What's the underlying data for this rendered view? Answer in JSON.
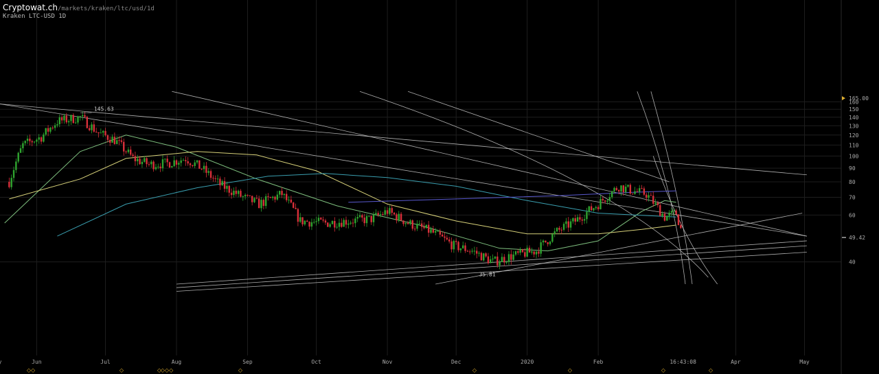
{
  "header": {
    "site": "Cryptowat.ch",
    "path": "/markets/kraken/ltc/usd/1d",
    "subtitle": "Kraken LTC-USD 1D"
  },
  "colors": {
    "bg": "#000000",
    "grid": "#1e1e1e",
    "up": "#2fa52f",
    "down": "#d9303a",
    "ma_green": "#7fc07f",
    "ma_yellow": "#d8d27a",
    "ma_teal": "#3a9fb0",
    "ma_blue": "#5a5ad0",
    "trend": "#cfcfcf"
  },
  "chart_data": {
    "type": "candlestick",
    "x_ticks": [
      "Jun",
      "Jul",
      "Aug",
      "Sep",
      "Oct",
      "Nov",
      "Dec",
      "2020",
      "Feb",
      "16:43:08",
      "Apr",
      "May"
    ],
    "y_ticks": [
      "165.00",
      "160",
      "150",
      "140",
      "130",
      "120",
      "110",
      "100",
      "90",
      "80",
      "70",
      "60",
      "49.42",
      "40"
    ],
    "y_scale": "log",
    "current_price": "49.42",
    "top_price": "165.00",
    "countdown": "16:43:08",
    "annotations": {
      "high": "145.63",
      "low": "35.81"
    },
    "candles_anchor_close": [
      [
        "2019-05-20",
        80
      ],
      [
        "2019-05-26",
        110
      ],
      [
        "2019-06-03",
        118
      ],
      [
        "2019-06-10",
        135
      ],
      [
        "2019-06-20",
        140
      ],
      [
        "2019-06-28",
        122
      ],
      [
        "2019-07-05",
        115
      ],
      [
        "2019-07-13",
        98
      ],
      [
        "2019-07-20",
        93
      ],
      [
        "2019-07-28",
        94
      ],
      [
        "2019-08-05",
        98
      ],
      [
        "2019-08-12",
        90
      ],
      [
        "2019-08-20",
        78
      ],
      [
        "2019-08-30",
        70
      ],
      [
        "2019-09-06",
        66
      ],
      [
        "2019-09-16",
        72
      ],
      [
        "2019-09-24",
        57
      ],
      [
        "2019-10-05",
        56
      ],
      [
        "2019-10-15",
        57
      ],
      [
        "2019-10-25",
        58
      ],
      [
        "2019-11-01",
        62
      ],
      [
        "2019-11-10",
        56
      ],
      [
        "2019-11-20",
        52
      ],
      [
        "2019-11-30",
        46
      ],
      [
        "2019-12-08",
        44
      ],
      [
        "2019-12-17",
        40
      ],
      [
        "2019-12-25",
        42
      ],
      [
        "2020-01-05",
        44
      ],
      [
        "2020-01-14",
        52
      ],
      [
        "2020-01-22",
        57
      ],
      [
        "2020-02-01",
        66
      ],
      [
        "2020-02-10",
        77
      ],
      [
        "2020-02-16",
        74
      ],
      [
        "2020-02-22",
        72
      ],
      [
        "2020-03-01",
        59
      ],
      [
        "2020-03-06",
        61
      ],
      [
        "2020-03-09",
        49.4
      ]
    ],
    "moving_averages": [
      {
        "color": "ma_green",
        "points": [
          [
            "2019-05-18",
            56
          ],
          [
            "2019-06-20",
            104
          ],
          [
            "2019-07-10",
            120
          ],
          [
            "2019-08-01",
            108
          ],
          [
            "2019-09-05",
            82
          ],
          [
            "2019-10-10",
            65
          ],
          [
            "2019-11-15",
            55
          ],
          [
            "2019-12-20",
            45
          ],
          [
            "2020-01-10",
            44
          ],
          [
            "2020-02-01",
            48
          ],
          [
            "2020-02-20",
            62
          ],
          [
            "2020-03-01",
            68
          ],
          [
            "2020-03-06",
            67
          ]
        ]
      },
      {
        "color": "ma_yellow",
        "points": [
          [
            "2019-05-20",
            69
          ],
          [
            "2019-06-20",
            82
          ],
          [
            "2019-07-10",
            98
          ],
          [
            "2019-08-10",
            104
          ],
          [
            "2019-09-05",
            101
          ],
          [
            "2019-10-01",
            88
          ],
          [
            "2019-11-01",
            66
          ],
          [
            "2019-12-01",
            57
          ],
          [
            "2020-01-01",
            51
          ],
          [
            "2020-02-01",
            51
          ],
          [
            "2020-02-20",
            53
          ],
          [
            "2020-03-06",
            55
          ]
        ]
      },
      {
        "color": "ma_teal",
        "points": [
          [
            "2019-06-10",
            50
          ],
          [
            "2019-07-10",
            66
          ],
          [
            "2019-08-10",
            76
          ],
          [
            "2019-09-10",
            84
          ],
          [
            "2019-10-05",
            86
          ],
          [
            "2019-11-01",
            83
          ],
          [
            "2019-12-01",
            77
          ],
          [
            "2020-01-01",
            68
          ],
          [
            "2020-02-01",
            61
          ],
          [
            "2020-03-06",
            59
          ]
        ]
      },
      {
        "color": "ma_blue",
        "points": [
          [
            "2019-10-15",
            67
          ],
          [
            "2019-12-01",
            69
          ],
          [
            "2020-01-15",
            71
          ],
          [
            "2020-02-15",
            73
          ],
          [
            "2020-03-06",
            74
          ]
        ]
      }
    ],
    "trend_lines": [
      [
        [
          "2019-05-16",
          157
        ],
        [
          "2020-05-02",
          85
        ]
      ],
      [
        [
          "2019-07-30",
          175
        ],
        [
          "2020-05-02",
          50
        ]
      ],
      [
        [
          "2019-11-10",
          175
        ],
        [
          "2020-03-03",
          80
        ]
      ],
      [
        [
          "2019-05-16",
          157
        ],
        [
          "2020-05-02",
          50
        ]
      ],
      [
        [
          "2019-11-22",
          33
        ],
        [
          "2020-04-30",
          61
        ]
      ],
      [
        [
          "2019-08-01",
          33
        ],
        [
          "2020-05-02",
          48
        ]
      ],
      [
        [
          "2019-08-01",
          32
        ],
        [
          "2020-05-02",
          46
        ]
      ],
      [
        [
          "2019-08-01",
          31
        ],
        [
          "2020-05-02",
          43.5
        ]
      ]
    ]
  },
  "markers": {
    "shapes": [
      "◇",
      "◇◇",
      "◇",
      "◇◇◇",
      "◇",
      "◇",
      "◇",
      "◇",
      "◇"
    ]
  }
}
